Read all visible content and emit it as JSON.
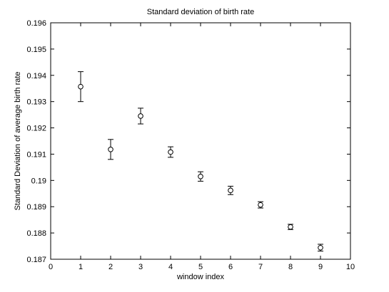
{
  "chart_data": {
    "type": "scatter",
    "title": "Standard deviation of birth rate",
    "xlabel": "window index",
    "ylabel": "Standard Deviation of average birth rate",
    "xlim": [
      0,
      10
    ],
    "ylim": [
      0.187,
      0.196
    ],
    "xticks": [
      0,
      1,
      2,
      3,
      4,
      5,
      6,
      7,
      8,
      9,
      10
    ],
    "xtick_labels": [
      "0",
      "1",
      "2",
      "3",
      "4",
      "5",
      "6",
      "7",
      "8",
      "9",
      "10"
    ],
    "yticks": [
      0.187,
      0.188,
      0.189,
      0.19,
      0.191,
      0.192,
      0.193,
      0.194,
      0.195,
      0.196
    ],
    "ytick_labels": [
      "0.187",
      "0.188",
      "0.189",
      "0.19",
      "0.191",
      "0.192",
      "0.193",
      "0.194",
      "0.195",
      "0.196"
    ],
    "grid": false,
    "marker": "circle",
    "points": [
      {
        "x": 1,
        "y": 0.19357,
        "err": 0.00057
      },
      {
        "x": 2,
        "y": 0.19118,
        "err": 0.00038
      },
      {
        "x": 3,
        "y": 0.19245,
        "err": 0.0003
      },
      {
        "x": 4,
        "y": 0.19108,
        "err": 0.0002
      },
      {
        "x": 5,
        "y": 0.19015,
        "err": 0.00018
      },
      {
        "x": 6,
        "y": 0.18962,
        "err": 0.00016
      },
      {
        "x": 7,
        "y": 0.18907,
        "err": 0.00012
      },
      {
        "x": 8,
        "y": 0.18823,
        "err": 0.0001
      },
      {
        "x": 9,
        "y": 0.18744,
        "err": 0.00013
      }
    ],
    "colors": {
      "axes": "#000000",
      "marker": "#000000",
      "background": "#ffffff"
    }
  }
}
